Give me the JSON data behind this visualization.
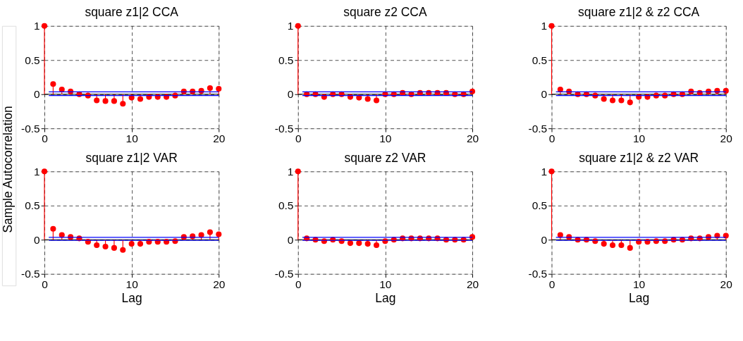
{
  "chart_data": [
    {
      "type": "lollipop",
      "title": "square z1|2 CCA",
      "ylabel": "Sample Autocorrelation",
      "x": [
        0,
        1,
        2,
        3,
        4,
        5,
        6,
        7,
        8,
        9,
        10,
        11,
        12,
        13,
        14,
        15,
        16,
        17,
        18,
        19,
        20
      ],
      "series": [
        {
          "color": "#ff0000",
          "values": [
            1,
            0.15,
            0.07,
            0.04,
            0,
            -0.02,
            -0.09,
            -0.1,
            -0.1,
            -0.14,
            -0.05,
            -0.07,
            -0.04,
            -0.04,
            -0.04,
            -0.02,
            0.04,
            0.04,
            0.05,
            0.09,
            0.08
          ]
        }
      ],
      "xlim": [
        0,
        20
      ],
      "xticks": [
        0,
        10,
        20
      ],
      "ylim": [
        -0.5,
        1
      ],
      "yticks": [
        -0.5,
        0,
        0.5,
        1
      ],
      "grid": true,
      "marker": "circle",
      "ref_lines": [
        {
          "axis": "y",
          "value": 0.035,
          "color": "#0000ff"
        },
        {
          "axis": "y",
          "value": -0.02,
          "color": "#0000ff"
        }
      ]
    },
    {
      "type": "lollipop",
      "title": "square z2 CCA",
      "x": [
        0,
        1,
        2,
        3,
        4,
        5,
        6,
        7,
        8,
        9,
        10,
        11,
        12,
        13,
        14,
        15,
        16,
        17,
        18,
        19,
        20
      ],
      "series": [
        {
          "color": "#ff0000",
          "values": [
            1,
            0,
            0,
            -0.04,
            0,
            0,
            -0.04,
            -0.05,
            -0.07,
            -0.09,
            0,
            0,
            0.02,
            0,
            0.02,
            0.02,
            0.02,
            0.02,
            0,
            0,
            0.04
          ]
        }
      ],
      "xlim": [
        0,
        20
      ],
      "xticks": [
        0,
        10,
        20
      ],
      "ylim": [
        -0.5,
        1
      ],
      "yticks": [
        -0.5,
        0,
        0.5,
        1
      ],
      "grid": true,
      "marker": "circle",
      "ref_lines": [
        {
          "axis": "y",
          "value": 0.035,
          "color": "#0000ff"
        },
        {
          "axis": "y",
          "value": -0.02,
          "color": "#0000ff"
        }
      ]
    },
    {
      "type": "lollipop",
      "title": "square z1|2 & z2 CCA",
      "x": [
        0,
        1,
        2,
        3,
        4,
        5,
        6,
        7,
        8,
        9,
        10,
        11,
        12,
        13,
        14,
        15,
        16,
        17,
        18,
        19,
        20
      ],
      "series": [
        {
          "color": "#ff0000",
          "values": [
            1,
            0.07,
            0.04,
            0,
            0,
            -0.02,
            -0.07,
            -0.09,
            -0.09,
            -0.12,
            -0.04,
            -0.04,
            -0.02,
            -0.02,
            0,
            0,
            0.04,
            0.02,
            0.04,
            0.05,
            0.05
          ]
        }
      ],
      "xlim": [
        0,
        20
      ],
      "xticks": [
        0,
        10,
        20
      ],
      "ylim": [
        -0.5,
        1
      ],
      "yticks": [
        -0.5,
        0,
        0.5,
        1
      ],
      "grid": true,
      "marker": "circle",
      "ref_lines": [
        {
          "axis": "y",
          "value": 0.035,
          "color": "#0000ff"
        },
        {
          "axis": "y",
          "value": -0.02,
          "color": "#0000ff"
        }
      ]
    },
    {
      "type": "lollipop",
      "title": "square z1|2 VAR",
      "xlabel": "Lag",
      "x": [
        0,
        1,
        2,
        3,
        4,
        5,
        6,
        7,
        8,
        9,
        10,
        11,
        12,
        13,
        14,
        15,
        16,
        17,
        18,
        19,
        20
      ],
      "series": [
        {
          "color": "#ff0000",
          "values": [
            1,
            0.16,
            0.07,
            0.04,
            0.02,
            -0.03,
            -0.08,
            -0.1,
            -0.12,
            -0.15,
            -0.06,
            -0.06,
            -0.03,
            -0.03,
            -0.03,
            -0.02,
            0.04,
            0.05,
            0.07,
            0.11,
            0.08
          ]
        }
      ],
      "xlim": [
        0,
        20
      ],
      "xticks": [
        0,
        10,
        20
      ],
      "ylim": [
        -0.5,
        1
      ],
      "yticks": [
        -0.5,
        0,
        0.5,
        1
      ],
      "grid": true,
      "marker": "circle",
      "ref_lines": [
        {
          "axis": "y",
          "value": 0.035,
          "color": "#0000ff"
        },
        {
          "axis": "y",
          "value": -0.01,
          "color": "#0000ff"
        }
      ]
    },
    {
      "type": "lollipop",
      "title": "square z2 VAR",
      "xlabel": "Lag",
      "x": [
        0,
        1,
        2,
        3,
        4,
        5,
        6,
        7,
        8,
        9,
        10,
        11,
        12,
        13,
        14,
        15,
        16,
        17,
        18,
        19,
        20
      ],
      "series": [
        {
          "color": "#ff0000",
          "values": [
            1,
            0.02,
            0,
            -0.02,
            0,
            -0.02,
            -0.05,
            -0.05,
            -0.06,
            -0.08,
            -0.02,
            0,
            0.02,
            0.02,
            0.02,
            0.02,
            0.02,
            0,
            0,
            0,
            0.04
          ]
        }
      ],
      "xlim": [
        0,
        20
      ],
      "xticks": [
        0,
        10,
        20
      ],
      "ylim": [
        -0.5,
        1
      ],
      "yticks": [
        -0.5,
        0,
        0.5,
        1
      ],
      "grid": true,
      "marker": "circle",
      "ref_lines": [
        {
          "axis": "y",
          "value": 0.035,
          "color": "#0000ff"
        },
        {
          "axis": "y",
          "value": -0.01,
          "color": "#0000ff"
        }
      ]
    },
    {
      "type": "lollipop",
      "title": "square z1|2 & z2 VAR",
      "xlabel": "Lag",
      "x": [
        0,
        1,
        2,
        3,
        4,
        5,
        6,
        7,
        8,
        9,
        10,
        11,
        12,
        13,
        14,
        15,
        16,
        17,
        18,
        19,
        20
      ],
      "series": [
        {
          "color": "#ff0000",
          "values": [
            1,
            0.07,
            0.04,
            0,
            0,
            -0.02,
            -0.06,
            -0.08,
            -0.08,
            -0.12,
            -0.03,
            -0.03,
            -0.02,
            -0.02,
            0,
            0,
            0.02,
            0.02,
            0.04,
            0.06,
            0.06
          ]
        }
      ],
      "xlim": [
        0,
        20
      ],
      "xticks": [
        0,
        10,
        20
      ],
      "ylim": [
        -0.5,
        1
      ],
      "yticks": [
        -0.5,
        0,
        0.5,
        1
      ],
      "grid": true,
      "marker": "circle",
      "ref_lines": [
        {
          "axis": "y",
          "value": 0.035,
          "color": "#0000ff"
        },
        {
          "axis": "y",
          "value": -0.01,
          "color": "#0000ff"
        }
      ]
    }
  ]
}
